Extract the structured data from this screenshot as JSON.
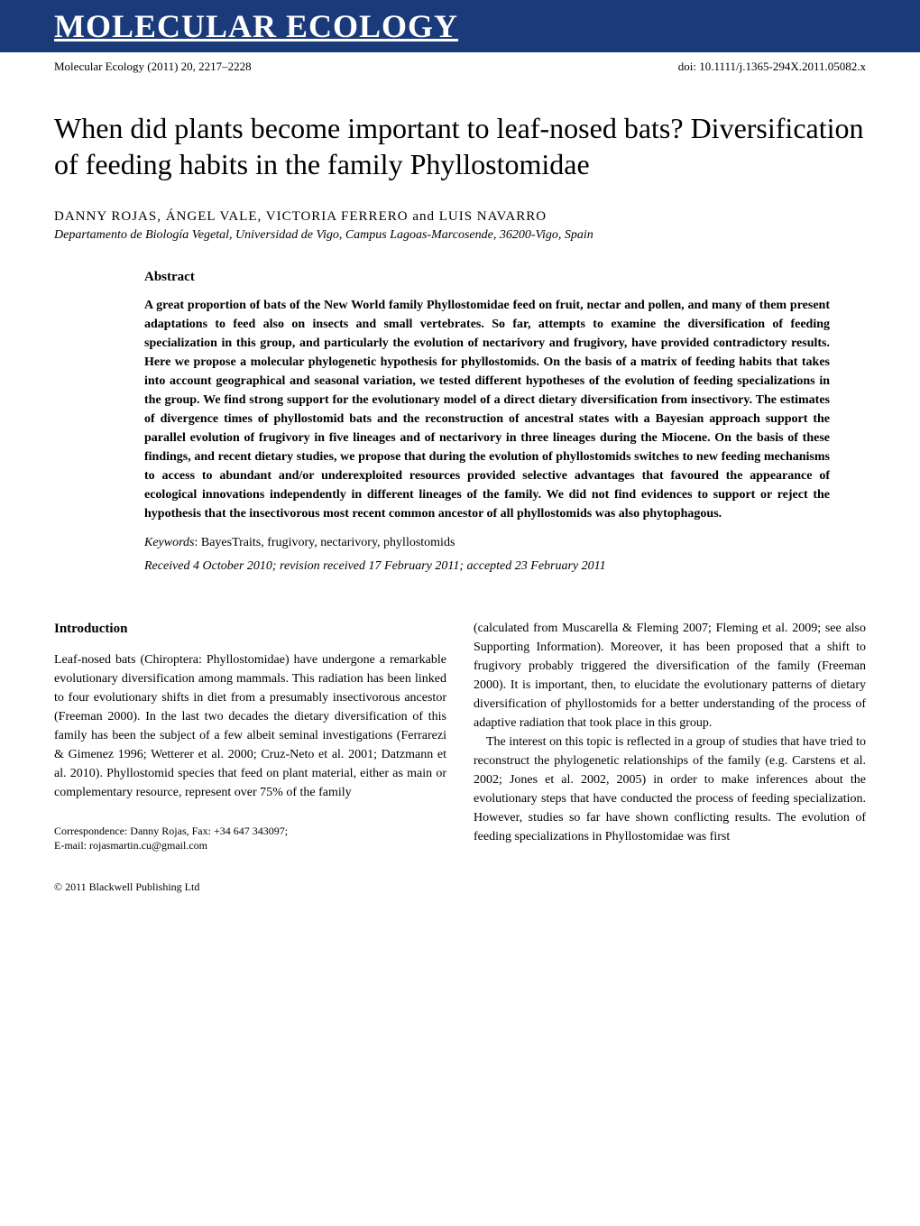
{
  "journal": {
    "banner_title": "MOLECULAR ECOLOGY",
    "citation": "Molecular Ecology (2011) 20, 2217–2228",
    "doi": "doi: 10.1111/j.1365-294X.2011.05082.x"
  },
  "article": {
    "title": "When did plants become important to leaf-nosed bats? Diversification of feeding habits in the family Phyllostomidae",
    "authors": "DANNY ROJAS, ÁNGEL VALE, VICTORIA FERRERO and LUIS NAVARRO",
    "affiliation": "Departamento de Biología Vegetal, Universidad de Vigo, Campus Lagoas-Marcosende, 36200-Vigo, Spain"
  },
  "abstract": {
    "heading": "Abstract",
    "text": "A great proportion of bats of the New World family Phyllostomidae feed on fruit, nectar and pollen, and many of them present adaptations to feed also on insects and small vertebrates. So far, attempts to examine the diversification of feeding specialization in this group, and particularly the evolution of nectarivory and frugivory, have provided contradictory results. Here we propose a molecular phylogenetic hypothesis for phyllostomids. On the basis of a matrix of feeding habits that takes into account geographical and seasonal variation, we tested different hypotheses of the evolution of feeding specializations in the group. We find strong support for the evolutionary model of a direct dietary diversification from insectivory. The estimates of divergence times of phyllostomid bats and the reconstruction of ancestral states with a Bayesian approach support the parallel evolution of frugivory in five lineages and of nectarivory in three lineages during the Miocene. On the basis of these findings, and recent dietary studies, we propose that during the evolution of phyllostomids switches to new feeding mechanisms to access to abundant and/or underexploited resources provided selective advantages that favoured the appearance of ecological innovations independently in different lineages of the family. We did not find evidences to support or reject the hypothesis that the insectivorous most recent common ancestor of all phyllostomids was also phytophagous.",
    "keywords_label": "Keywords",
    "keywords": ": BayesTraits, frugivory, nectarivory, phyllostomids",
    "dates": "Received 4 October 2010; revision received 17 February 2011; accepted 23 February 2011"
  },
  "body": {
    "introduction_heading": "Introduction",
    "col1_p1": "Leaf-nosed bats (Chiroptera: Phyllostomidae) have undergone a remarkable evolutionary diversification among mammals. This radiation has been linked to four evolutionary shifts in diet from a presumably insectivorous ancestor (Freeman 2000). In the last two decades the dietary diversification of this family has been the subject of a few albeit seminal investigations (Ferrarezi & Gimenez 1996; Wetterer et al. 2000; Cruz-Neto et al. 2001; Datzmann et al. 2010). Phyllostomid species that feed on plant material, either as main or complementary resource, represent over 75% of the family",
    "col2_p1": "(calculated from Muscarella & Fleming 2007; Fleming et al. 2009; see also Supporting Information). Moreover, it has been proposed that a shift to frugivory probably triggered the diversification of the family (Freeman 2000). It is important, then, to elucidate the evolutionary patterns of dietary diversification of phyllostomids for a better understanding of the process of adaptive radiation that took place in this group.",
    "col2_p2": "The interest on this topic is reflected in a group of studies that have tried to reconstruct the phylogenetic relationships of the family (e.g. Carstens et al. 2002; Jones et al. 2002, 2005) in order to make inferences about the evolutionary steps that have conducted the process of feeding specialization. However, studies so far have shown conflicting results. The evolution of feeding specializations in Phyllostomidae was first"
  },
  "correspondence": {
    "line1": "Correspondence: Danny Rojas, Fax: +34 647 343097;",
    "line2": "E-mail: rojasmartin.cu@gmail.com"
  },
  "copyright": "© 2011 Blackwell Publishing Ltd",
  "colors": {
    "banner_bg": "#1a3a7a",
    "banner_text": "#ffffff",
    "body_text": "#000000",
    "background": "#ffffff"
  },
  "typography": {
    "banner_fontsize": 36,
    "title_fontsize": 32,
    "body_fontsize": 14,
    "meta_fontsize": 13
  }
}
